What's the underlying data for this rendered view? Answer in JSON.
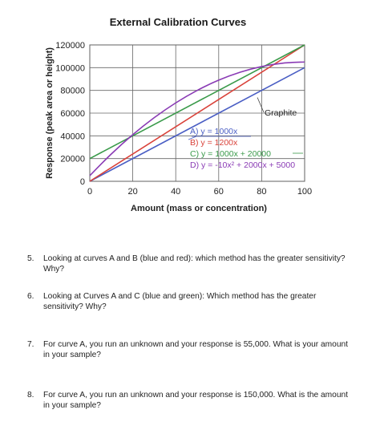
{
  "chart_data": {
    "type": "line",
    "title": "External Calibration Curves",
    "xlabel": "Amount (mass or concentration)",
    "ylabel": "Response (peak area or height)",
    "xlim": [
      0,
      100
    ],
    "ylim": [
      0,
      120000
    ],
    "x_ticks": [
      "0",
      "20",
      "40",
      "60",
      "80",
      "100"
    ],
    "y_ticks": [
      "0",
      "20000",
      "40000",
      "60000",
      "80000",
      "100000",
      "120000"
    ],
    "grid": true,
    "series": [
      {
        "label": "A) y = 1000x",
        "color": "#4a5ec4",
        "x": [
          0,
          100
        ],
        "y": [
          0,
          100000
        ]
      },
      {
        "label": "B) y = 1200x",
        "color": "#d9423a",
        "x": [
          0,
          100
        ],
        "y": [
          0,
          120000
        ]
      },
      {
        "label": "C) y = 1000x + 20000",
        "color": "#3a9a4a",
        "x": [
          0,
          100
        ],
        "y": [
          20000,
          120000
        ]
      },
      {
        "label": "D) y = -10x² + 2000x + 5000",
        "color": "#8a3bb5",
        "x": [
          0,
          10,
          20,
          30,
          40,
          50,
          60,
          70,
          80,
          90,
          100
        ],
        "y": [
          5000,
          24000,
          41000,
          56000,
          69000,
          80000,
          89000,
          96000,
          101000,
          104000,
          105000
        ]
      }
    ],
    "annotations": [
      {
        "text": "Graphite",
        "points_to": "A"
      }
    ]
  },
  "questions": [
    {
      "number": "5.",
      "text": "Looking at curves A and B (blue and red): which method has the greater sensitivity?  Why?"
    },
    {
      "number": "6.",
      "text": "Looking at Curves A and C (blue and green): Which method has the greater sensitivity? Why?"
    },
    {
      "number": "7.",
      "text": "For curve A, you run an unknown and your response is 55,000.  What is your amount in your sample?"
    },
    {
      "number": "8.",
      "text": "For curve A, you run an unknown and your response is 150,000.  What is the amount in your sample?"
    }
  ]
}
